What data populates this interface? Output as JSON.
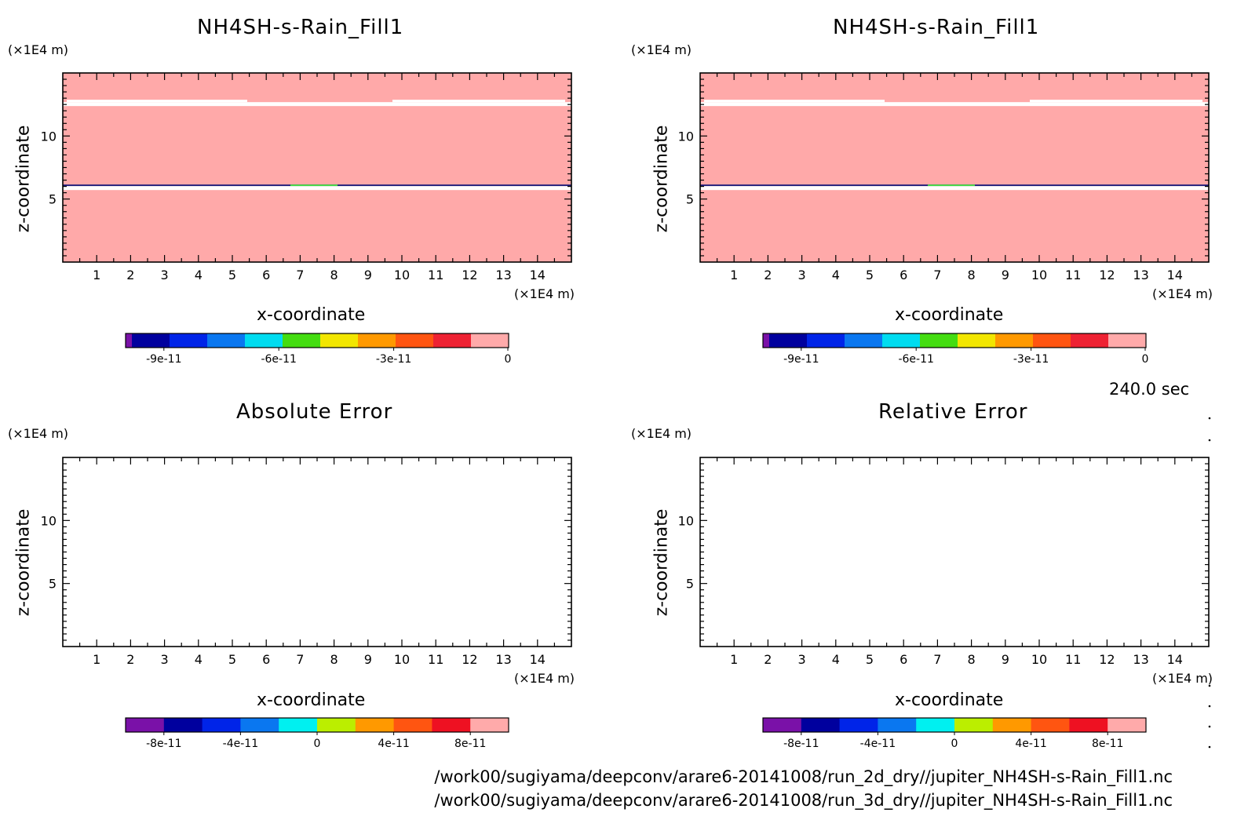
{
  "time_label": "240.0 sec",
  "file_paths": [
    "/work00/sugiyama/deepconv/arare6-20141008/run_2d_dry//jupiter_NH4SH-s-Rain_Fill1.nc",
    "/work00/sugiyama/deepconv/arare6-20141008/run_3d_dry//jupiter_NH4SH-s-Rain_Fill1.nc"
  ],
  "colors": {
    "fill": "#ffa9a9",
    "band_line": "#1a1a7a",
    "band_highlight": "#44dd44"
  },
  "chart_data": [
    {
      "type": "heatmap",
      "title": "NH4SH-s-Rain_Fill1",
      "xlabel": "x-coordinate",
      "ylabel": "z-coordinate",
      "x_unit": "(×1E4 m)",
      "y_unit": "(×1E4 m)",
      "xlim": [
        0,
        15
      ],
      "ylim": [
        0,
        15
      ],
      "x_ticks": [
        1,
        2,
        3,
        4,
        5,
        6,
        7,
        8,
        9,
        10,
        11,
        12,
        13,
        14
      ],
      "y_ticks": [
        5,
        10
      ],
      "filled": true,
      "white_bands_z": [
        12.5,
        5.9
      ],
      "colorbar": {
        "colors": [
          "#7a11a8",
          "#00009e",
          "#0024e8",
          "#0a77f0",
          "#00dcf0",
          "#44dd11",
          "#f2e600",
          "#ff9900",
          "#ff5511",
          "#ee2233",
          "#ffaaaa"
        ],
        "tick_labels": [
          "-9e-11",
          "-6e-11",
          "-3e-11",
          "0"
        ],
        "tick_values": [
          -9e-11,
          -6e-11,
          -3e-11,
          0
        ],
        "range": [
          -1e-10,
          0
        ]
      }
    },
    {
      "type": "heatmap",
      "title": "NH4SH-s-Rain_Fill1",
      "xlabel": "x-coordinate",
      "ylabel": "z-coordinate",
      "x_unit": "(×1E4 m)",
      "y_unit": "(×1E4 m)",
      "xlim": [
        0,
        15
      ],
      "ylim": [
        0,
        15
      ],
      "x_ticks": [
        1,
        2,
        3,
        4,
        5,
        6,
        7,
        8,
        9,
        10,
        11,
        12,
        13,
        14
      ],
      "y_ticks": [
        5,
        10
      ],
      "filled": true,
      "white_bands_z": [
        12.5,
        5.9
      ],
      "colorbar": {
        "colors": [
          "#7a11a8",
          "#00009e",
          "#0024e8",
          "#0a77f0",
          "#00dcf0",
          "#44dd11",
          "#f2e600",
          "#ff9900",
          "#ff5511",
          "#ee2233",
          "#ffaaaa"
        ],
        "tick_labels": [
          "-9e-11",
          "-6e-11",
          "-3e-11",
          "0"
        ],
        "tick_values": [
          -9e-11,
          -6e-11,
          -3e-11,
          0
        ],
        "range": [
          -1e-10,
          0
        ]
      }
    },
    {
      "type": "heatmap",
      "title": "Absolute Error",
      "xlabel": "x-coordinate",
      "ylabel": "z-coordinate",
      "x_unit": "(×1E4 m)",
      "y_unit": "(×1E4 m)",
      "xlim": [
        0,
        15
      ],
      "ylim": [
        0,
        15
      ],
      "x_ticks": [
        1,
        2,
        3,
        4,
        5,
        6,
        7,
        8,
        9,
        10,
        11,
        12,
        13,
        14
      ],
      "y_ticks": [
        5,
        10
      ],
      "filled": false,
      "colorbar": {
        "colors": [
          "#7a11a8",
          "#00009e",
          "#0024e8",
          "#0a77f0",
          "#00f0f0",
          "#bbee00",
          "#ff9900",
          "#ff5511",
          "#ee1122",
          "#ffaaaa"
        ],
        "tick_labels": [
          "-8e-11",
          "-4e-11",
          "0",
          "4e-11",
          "8e-11"
        ],
        "tick_values": [
          -8e-11,
          -4e-11,
          0,
          4e-11,
          8e-11
        ],
        "range": [
          -1e-10,
          1e-10
        ]
      }
    },
    {
      "type": "heatmap",
      "title": "Relative Error",
      "xlabel": "x-coordinate",
      "ylabel": "z-coordinate",
      "x_unit": "(×1E4 m)",
      "y_unit": "(×1E4 m)",
      "xlim": [
        0,
        15
      ],
      "ylim": [
        0,
        15
      ],
      "x_ticks": [
        1,
        2,
        3,
        4,
        5,
        6,
        7,
        8,
        9,
        10,
        11,
        12,
        13,
        14
      ],
      "y_ticks": [
        5,
        10
      ],
      "filled": false,
      "colorbar": {
        "colors": [
          "#7a11a8",
          "#00009e",
          "#0024e8",
          "#0a77f0",
          "#00f0f0",
          "#bbee00",
          "#ff9900",
          "#ff5511",
          "#ee1122",
          "#ffaaaa"
        ],
        "tick_labels": [
          "-8e-11",
          "-4e-11",
          "0",
          "4e-11",
          "8e-11"
        ],
        "tick_values": [
          -8e-11,
          -4e-11,
          0,
          4e-11,
          8e-11
        ],
        "range": [
          -1e-10,
          1e-10
        ]
      }
    }
  ]
}
